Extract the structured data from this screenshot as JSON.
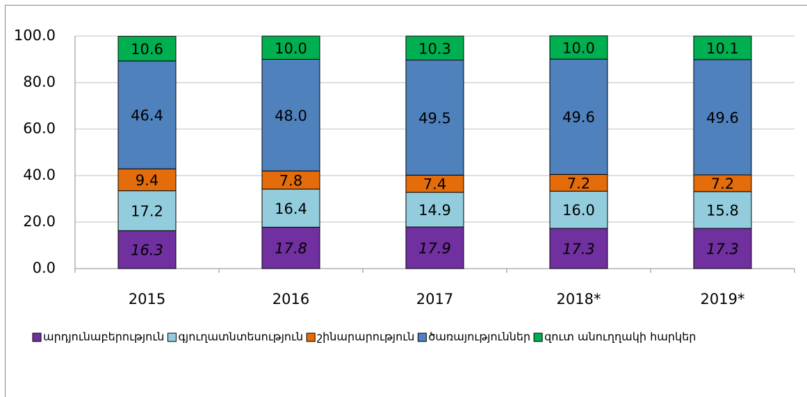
{
  "chart_data": {
    "type": "stacked_bar",
    "categories": [
      "2015",
      "2016",
      "2017",
      "2018*",
      "2019*"
    ],
    "series": [
      {
        "name": "արդյունաբերություն",
        "color": "#7030a0",
        "label_italic": true,
        "values": [
          16.3,
          17.8,
          17.9,
          17.3,
          17.3
        ],
        "value_labels": [
          "16.3",
          "17.8",
          "17.9",
          "17.3",
          "17.3"
        ]
      },
      {
        "name": "գյուղատնտեսություն",
        "color": "#93cddd",
        "values": [
          17.2,
          16.4,
          14.9,
          16.0,
          15.8
        ],
        "value_labels": [
          "17.2",
          "16.4",
          "14.9",
          "16.0",
          "15.8"
        ]
      },
      {
        "name": "շինարարություն",
        "color": "#e46c0a",
        "values": [
          9.4,
          7.8,
          7.4,
          7.2,
          7.2
        ],
        "value_labels": [
          "9.4",
          "7.8",
          "7.4",
          "7.2",
          "7.2"
        ]
      },
      {
        "name": "ծառայություններ",
        "color": "#4f81bd",
        "values": [
          46.4,
          48.0,
          49.5,
          49.6,
          49.6
        ],
        "value_labels": [
          "46.4",
          "48.0",
          "49.5",
          "49.6",
          "49.6"
        ]
      },
      {
        "name": "զուտ անուղղակի հարկեր",
        "color": "#00b050",
        "values": [
          10.6,
          10.0,
          10.3,
          10.0,
          10.1
        ],
        "value_labels": [
          "10.6",
          "10.0",
          "10.3",
          "10.0",
          "10.1"
        ]
      }
    ],
    "ylim": [
      0,
      100
    ],
    "yticks": [
      {
        "value": 0,
        "label": "0.0"
      },
      {
        "value": 20,
        "label": "20.0"
      },
      {
        "value": 40,
        "label": "40.0"
      },
      {
        "value": 60,
        "label": "60.0"
      },
      {
        "value": 80,
        "label": "80.0"
      },
      {
        "value": 100,
        "label": "100.0"
      }
    ],
    "grid": true,
    "legend": "bottom"
  }
}
